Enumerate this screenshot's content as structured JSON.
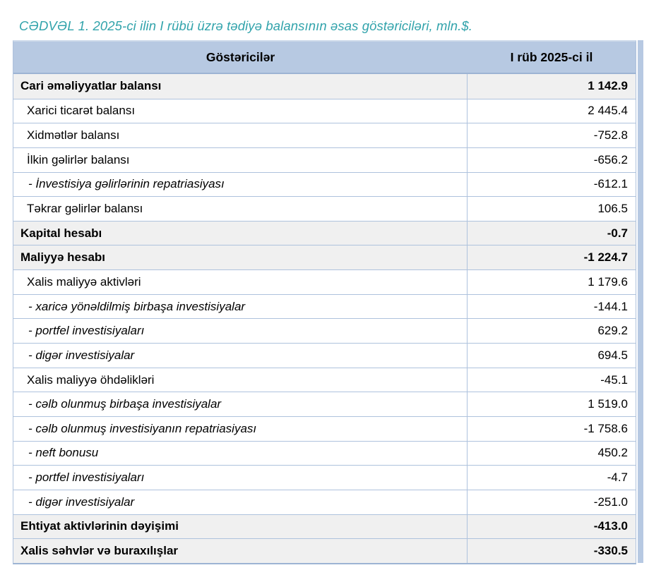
{
  "title": "CƏDVƏL 1. 2025-ci ilin I rübü üzrə tədiyə balansının əsas göstəriciləri, mln.$.",
  "table": {
    "header": {
      "indicator_col": "Göstəricilər",
      "period_col": "I rüb 2025-ci il"
    },
    "rows": [
      {
        "label": "Cari əməliyyatlar balansı",
        "value": "1 142.9",
        "style": "total"
      },
      {
        "label": "Xarici ticarət balansı",
        "value": "2 445.4",
        "style": "item"
      },
      {
        "label": "Xidmətlər balansı",
        "value": "-752.8",
        "style": "item"
      },
      {
        "label": "İlkin gəlirlər balansı",
        "value": "-656.2",
        "style": "item"
      },
      {
        "label": "- İnvestisiya gəlirlərinin repatriasiyası",
        "value": "-612.1",
        "style": "sub"
      },
      {
        "label": "Təkrar gəlirlər balansı",
        "value": "106.5",
        "style": "item"
      },
      {
        "label": "Kapital hesabı",
        "value": "-0.7",
        "style": "total"
      },
      {
        "label": "Maliyyə hesabı",
        "value": "-1 224.7",
        "style": "total"
      },
      {
        "label": "Xalis maliyyə aktivləri",
        "value": "1 179.6",
        "style": "item"
      },
      {
        "label": "- xaricə yönəldilmiş birbaşa investisiyalar",
        "value": "-144.1",
        "style": "sub"
      },
      {
        "label": "- portfel investisiyaları",
        "value": "629.2",
        "style": "sub"
      },
      {
        "label": "- digər investisiyalar",
        "value": "694.5",
        "style": "sub"
      },
      {
        "label": "Xalis maliyyə öhdəlikləri",
        "value": "-45.1",
        "style": "item"
      },
      {
        "label": "- cəlb olunmuş birbaşa investisiyalar",
        "value": "1 519.0",
        "style": "sub"
      },
      {
        "label": "- cəlb olunmuş investisiyanın repatriasiyası",
        "value": "-1 758.6",
        "style": "sub"
      },
      {
        "label": "- neft bonusu",
        "value": "450.2",
        "style": "sub"
      },
      {
        "label": "- portfel investisiyaları",
        "value": "-4.7",
        "style": "sub"
      },
      {
        "label": "- digər investisiyalar",
        "value": "-251.0",
        "style": "sub"
      },
      {
        "label": "Ehtiyat aktivlərinin dəyişimi",
        "value": "-413.0",
        "style": "total"
      },
      {
        "label": "Xalis səhvlər və buraxılışlar",
        "value": "-330.5",
        "style": "total"
      }
    ]
  },
  "colors": {
    "title_teal": "#31a3ab",
    "header_bg": "#b7c9e2",
    "grid_border": "#aec2dd",
    "strong_border": "#9db4d4",
    "table_top_border": "#cdd9ea",
    "total_row_bg": "#f0f0f0",
    "text": "#000000",
    "page_bg": "#ffffff"
  }
}
